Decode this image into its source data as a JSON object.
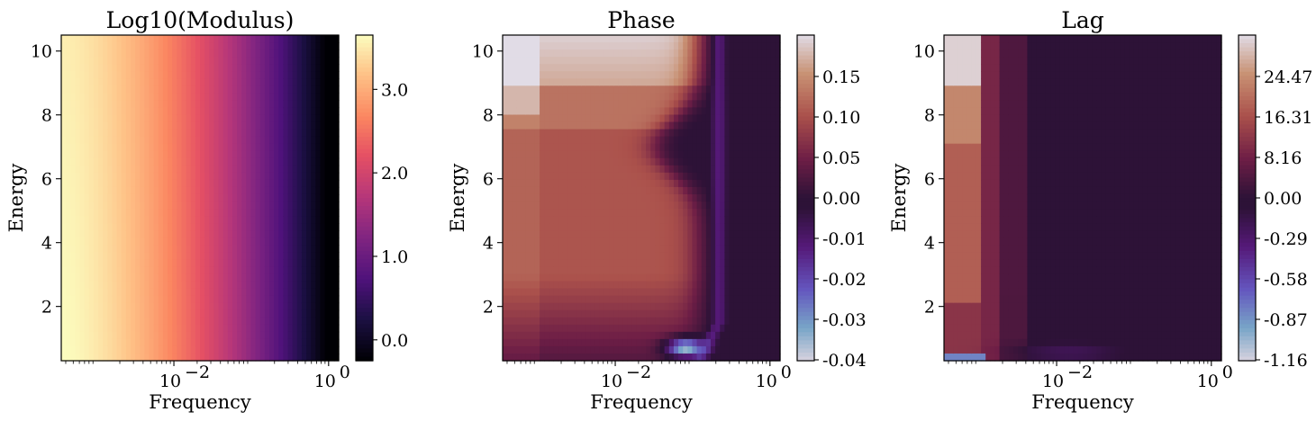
{
  "chart_data": [
    {
      "type": "heatmap",
      "title": "Log10(Modulus)",
      "xlabel": "Frequency",
      "ylabel": "Energy",
      "x_scale": "log",
      "xlim": [
        0.00035,
        1.35
      ],
      "ylim": [
        0.3,
        10.5
      ],
      "x_ticks": [
        {
          "value": 0.01,
          "label": "10",
          "exp": "−2"
        },
        {
          "value": 1,
          "label": "10",
          "exp": "0"
        }
      ],
      "y_ticks": [
        {
          "value": 2,
          "label": "2"
        },
        {
          "value": 4,
          "label": "4"
        },
        {
          "value": 6,
          "label": "6"
        },
        {
          "value": 8,
          "label": "8"
        },
        {
          "value": 10,
          "label": "10"
        }
      ],
      "colormap": "magma",
      "colorbar": {
        "range": [
          -0.25,
          3.65
        ],
        "ticks": [
          {
            "value": 0.0,
            "label": "0.0"
          },
          {
            "value": 1.0,
            "label": "1.0"
          },
          {
            "value": 2.0,
            "label": "2.0"
          },
          {
            "value": 3.0,
            "label": "3.0"
          }
        ]
      },
      "grid": false
    },
    {
      "type": "heatmap",
      "title": "Phase",
      "xlabel": "Frequency",
      "ylabel": "Energy",
      "x_scale": "log",
      "xlim": [
        0.00035,
        1.35
      ],
      "ylim": [
        0.3,
        10.5
      ],
      "x_ticks": [
        {
          "value": 0.01,
          "label": "10",
          "exp": "−2"
        },
        {
          "value": 1,
          "label": "10",
          "exp": "0"
        }
      ],
      "y_ticks": [
        {
          "value": 2,
          "label": "2"
        },
        {
          "value": 4,
          "label": "4"
        },
        {
          "value": 6,
          "label": "6"
        },
        {
          "value": 8,
          "label": "8"
        },
        {
          "value": 10,
          "label": "10"
        }
      ],
      "colormap": "twilight-diverging",
      "colorbar": {
        "ticks": [
          "0.15",
          "0.10",
          "0.05",
          "0.00",
          "-0.01",
          "-0.02",
          "-0.03",
          "-0.04"
        ]
      },
      "grid": false
    },
    {
      "type": "heatmap",
      "title": "Lag",
      "xlabel": "Frequency",
      "ylabel": "Energy",
      "x_scale": "log",
      "xlim": [
        0.00035,
        1.35
      ],
      "ylim": [
        0.3,
        10.5
      ],
      "x_ticks": [
        {
          "value": 0.01,
          "label": "10",
          "exp": "−2"
        },
        {
          "value": 1,
          "label": "10",
          "exp": "0"
        }
      ],
      "y_ticks": [
        {
          "value": 2,
          "label": "2"
        },
        {
          "value": 4,
          "label": "4"
        },
        {
          "value": 6,
          "label": "6"
        },
        {
          "value": 8,
          "label": "8"
        },
        {
          "value": 10,
          "label": "10"
        }
      ],
      "colormap": "twilight-diverging",
      "colorbar": {
        "ticks": [
          "24.47",
          "16.31",
          "8.16",
          "0.00",
          "-0.29",
          "-0.58",
          "-0.87",
          "-1.16"
        ]
      },
      "grid": false
    }
  ]
}
